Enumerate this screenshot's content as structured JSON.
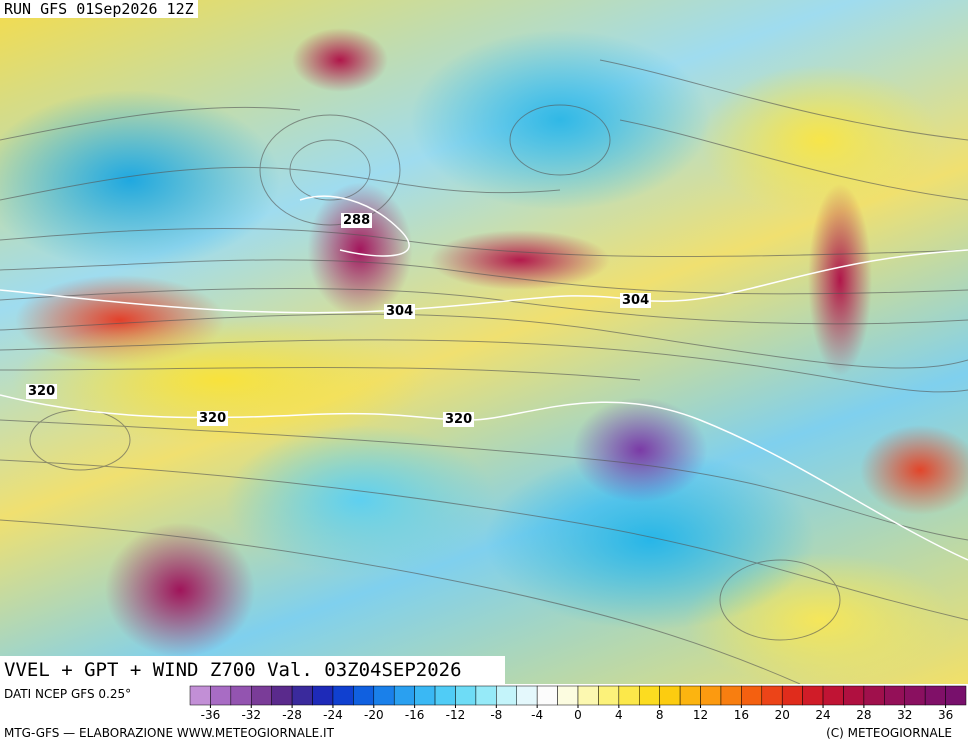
{
  "header": {
    "run": "RUN GFS 01Sep2026 12Z"
  },
  "contour_labels": [
    "288",
    "304",
    "304",
    "320",
    "320",
    "320"
  ],
  "title": "VVEL + GPT + WIND Z700 Val. 03Z04SEP2026",
  "source": "DATI NCEP GFS 0.25°",
  "colorbar": {
    "ticks": [
      -36,
      -32,
      -28,
      -24,
      -20,
      -16,
      -12,
      -8,
      -4,
      0,
      4,
      8,
      12,
      16,
      20,
      24,
      28,
      32,
      36
    ],
    "colors": [
      "#c28fd6",
      "#a86cc4",
      "#9354b0",
      "#7a3c98",
      "#5a2a8c",
      "#3a2a9c",
      "#1e2ab8",
      "#1040d0",
      "#1060e0",
      "#1a80ea",
      "#2aa0f0",
      "#3ab8f4",
      "#50ccf6",
      "#6edcf6",
      "#96eaf8",
      "#c4f4fa",
      "#e4f8fc",
      "#fcfcfc",
      "#fcfce0",
      "#fcf8b0",
      "#fcf27a",
      "#fce84a",
      "#fcdc20",
      "#fccc10",
      "#fcb410",
      "#fc9a10",
      "#f87e10",
      "#f46010",
      "#ec4418",
      "#e02c1c",
      "#d01c28",
      "#c01434",
      "#b01040",
      "#a0104c",
      "#941058",
      "#8a1060",
      "#801068",
      "#78106c"
    ]
  },
  "footer": {
    "left": "MTG-GFS — ELABORAZIONE WWW.METEOGIORNALE.IT",
    "right": "(C) METEOGIORNALE"
  }
}
